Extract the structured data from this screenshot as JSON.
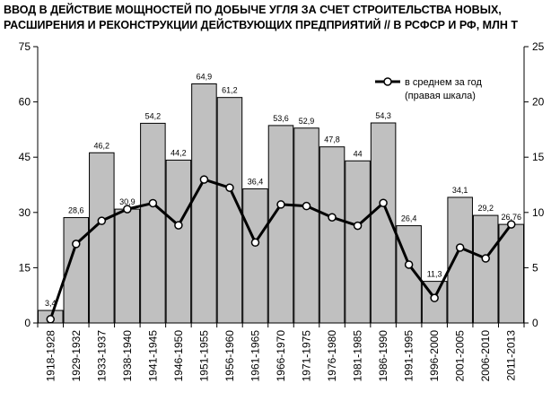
{
  "chart_data": {
    "type": "bar",
    "title": "ВВОД В ДЕЙСТВИЕ МОЩНОСТЕЙ ПО ДОБЫЧЕ УГЛЯ ЗА СЧЕТ СТРОИТЕЛЬСТВА НОВЫХ,\nРАСШИРЕНИЯ И РЕКОНСТРУКЦИИ ДЕЙСТВУЮЩИХ ПРЕДПРИЯТИЙ // В РСФСР И РФ, МЛН Т",
    "categories": [
      "1918-1928",
      "1929-1932",
      "1933-1937",
      "1938-1940",
      "1941-1945",
      "1946-1950",
      "1951-1955",
      "1956-1960",
      "1961-1965",
      "1966-1970",
      "1971-1975",
      "1976-1980",
      "1981-1985",
      "1986-1990",
      "1991-1995",
      "1996-2000",
      "2001-2005",
      "2006-2010",
      "2011-2013"
    ],
    "series": [
      {
        "type": "bar",
        "axis": "left",
        "values": [
          3.4,
          28.6,
          46.2,
          30.9,
          54.2,
          44.2,
          64.9,
          61.2,
          36.4,
          53.6,
          52.9,
          47.8,
          44,
          54.3,
          26.4,
          11.3,
          34.1,
          29.2,
          26.76
        ],
        "labels": [
          "3,4",
          "28,6",
          "46,2",
          "30,9",
          "54,2",
          "44,2",
          "64,9",
          "61,2",
          "36,4",
          "53,6",
          "52,9",
          "47,8",
          "44",
          "54,3",
          "26,4",
          "11,3",
          "34,1",
          "29,2",
          "26,76"
        ],
        "color": "#c0c0c0"
      },
      {
        "type": "line",
        "axis": "right",
        "name": "в среднем за год\n(правая шкала)",
        "values": [
          0.34,
          7.15,
          9.24,
          10.3,
          10.84,
          8.84,
          12.98,
          12.24,
          7.28,
          10.72,
          10.58,
          9.56,
          8.8,
          10.86,
          5.28,
          2.26,
          6.82,
          5.84,
          8.92
        ],
        "color": "#000000"
      }
    ],
    "ylim_left": [
      0,
      75
    ],
    "yticks_left": [
      0,
      15,
      30,
      45,
      60,
      75
    ],
    "ylim_right": [
      0,
      25
    ],
    "yticks_right": [
      0,
      5,
      10,
      15,
      20,
      25
    ],
    "legend": "top-right",
    "grid": false
  }
}
